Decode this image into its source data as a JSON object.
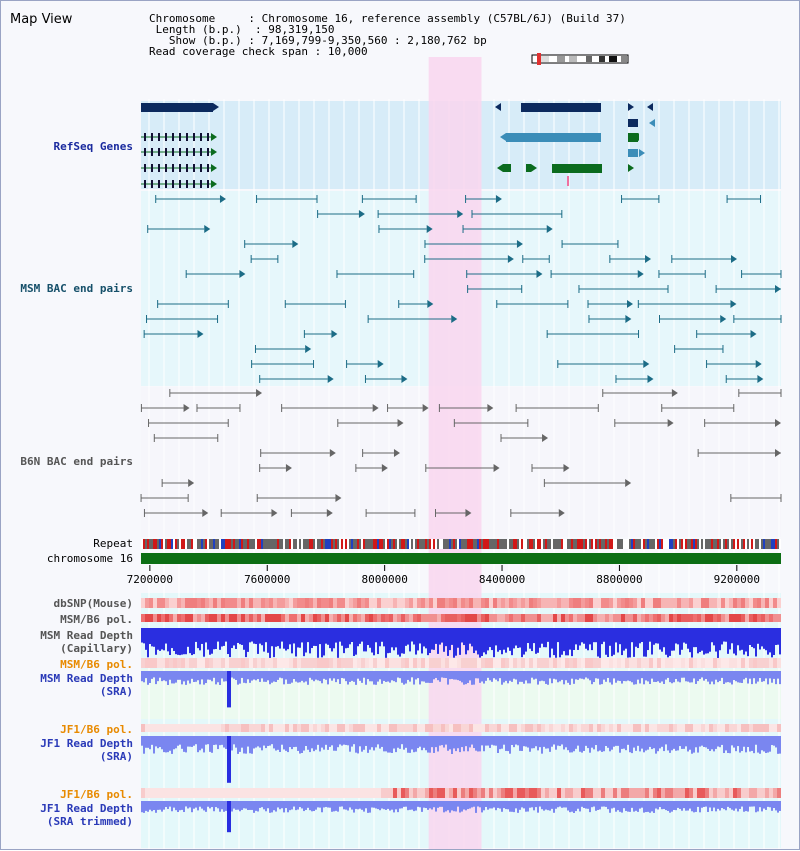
{
  "page": {
    "title": "Map View",
    "info": {
      "chromosome_label": "Chromosome",
      "chromosome_value": "Chromosome 16, reference assembly (C57BL/6J) (Build 37)",
      "length_label": "Length (b.p.)",
      "length_value": "98,319,150",
      "show_label": "Show (b.p.)",
      "show_value": "7,169,799-9,350,560 : 2,180,762 bp",
      "coverage_label": "Read coverage check span",
      "coverage_value": "10,000"
    }
  },
  "tracks": {
    "refseq": "RefSeq Genes",
    "msm_bac": "MSM BAC end pairs",
    "b6n_bac": "B6N BAC end pairs",
    "repeat": "Repeat",
    "chromosome": "chromosome 16",
    "dbsnp": "dbSNP(Mouse)",
    "msm_pol_1": "MSM/B6 pol.",
    "msm_depth_cap_1": "MSM Read Depth",
    "msm_depth_cap_2": "(Capillary)",
    "msm_pol_2": "MSM/B6 pol.",
    "msm_depth_sra_1": "MSM Read Depth",
    "msm_depth_sra_2": "(SRA)",
    "jf1_pol_1": "JF1/B6 pol.",
    "jf1_depth_1": "JF1 Read Depth",
    "jf1_depth_2": "(SRA)",
    "jf1_pol_2": "JF1/B6 pol.",
    "jf1_trim_1": "JF1 Read Depth",
    "jf1_trim_2": "(SRA trimmed)"
  },
  "axis": {
    "start": 7169799,
    "end": 9350560,
    "ticks": [
      "7200000",
      "7600000",
      "8000000",
      "8400000",
      "8800000",
      "9200000"
    ]
  },
  "highlight": {
    "start": 8150000,
    "end": 8330000
  },
  "colors": {
    "highlight": "#f9d6ee",
    "refseq_navy": "#0c2a5e",
    "refseq_teal": "#3b8db8",
    "refseq_green": "#0b6b1e",
    "msm_bac": "#1c6c86",
    "b6n_bac": "#666666",
    "chromosome": "#0c6e14",
    "depth_dark": "#2a2ee0",
    "depth_light": "#7a86f0"
  }
}
